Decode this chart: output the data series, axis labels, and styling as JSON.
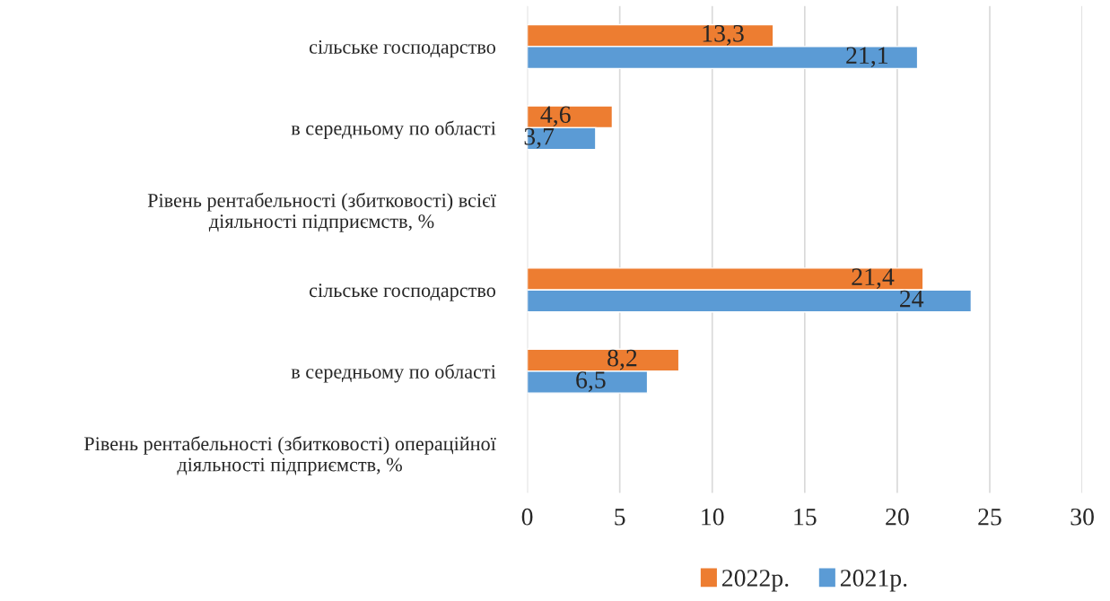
{
  "chart_data": {
    "type": "bar",
    "orientation": "horizontal",
    "categories": [
      "сільське господарство",
      "в середньому по області",
      "Рівень рентабельності (збитковості) всієї\nдіяльності підприємств, %",
      "сільське господарство",
      "в середньому по області",
      "Рівень рентабельності (збитковості) операційної\nдіяльності підприємств, %"
    ],
    "series": [
      {
        "name": "2022р.",
        "color": "#ed7d31",
        "values": [
          13.3,
          4.6,
          null,
          21.4,
          8.2,
          null
        ],
        "value_labels": [
          "13,3",
          "4,6",
          null,
          "21,4",
          "8,2",
          null
        ]
      },
      {
        "name": "2021р.",
        "color": "#5b9bd5",
        "values": [
          21.1,
          3.7,
          null,
          24,
          6.5,
          null
        ],
        "value_labels": [
          "21,1",
          "3,7",
          null,
          "24",
          "6,5",
          null
        ]
      }
    ],
    "xlim": [
      0,
      30
    ],
    "xticks": [
      0,
      5,
      10,
      15,
      20,
      25,
      30
    ],
    "grid": "x",
    "legend": "bottom"
  }
}
